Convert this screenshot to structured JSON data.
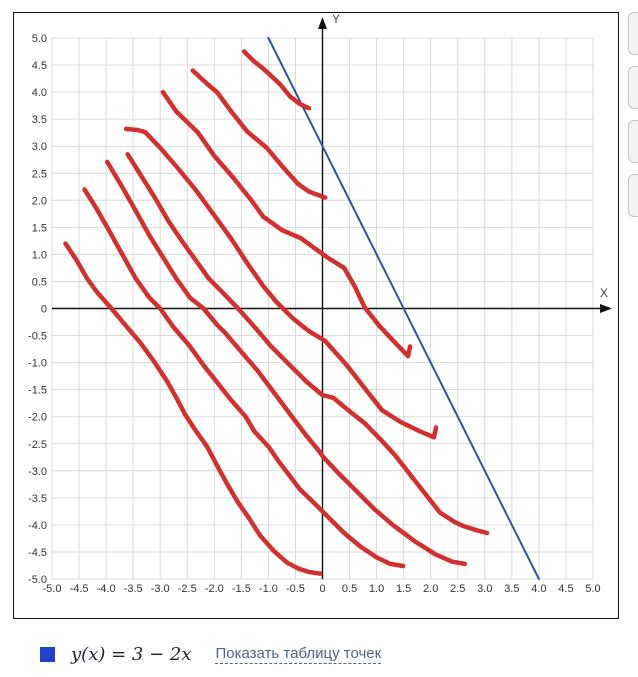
{
  "chart_data": {
    "type": "line",
    "title": "",
    "xlabel": "X",
    "ylabel": "Y",
    "xlim": [
      -5,
      5
    ],
    "ylim": [
      -5,
      5
    ],
    "grid": true,
    "grid_step": 0.5,
    "x_ticks": [
      "-5.0",
      "-4.5",
      "-4.0",
      "-3.5",
      "-3.0",
      "-2.5",
      "-2.0",
      "-1.5",
      "-1.0",
      "-0.5",
      "0",
      "0.5",
      "1.0",
      "1.5",
      "2.0",
      "2.5",
      "3.0",
      "3.5",
      "4.0",
      "4.5",
      "5.0"
    ],
    "y_ticks": [
      "5.0",
      "4.5",
      "4.0",
      "3.5",
      "3.0",
      "2.5",
      "2.0",
      "1.5",
      "1.0",
      "0.5",
      "0",
      "-0.5",
      "-1.0",
      "-1.5",
      "-2.0",
      "-2.5",
      "-3.0",
      "-3.5",
      "-4.0",
      "-4.5",
      "-5.0"
    ],
    "axis_color": "#111111",
    "grid_color": "#d9d9d9",
    "tick_color": "#333333",
    "series": [
      {
        "name": "y(x) = 3 − 2x",
        "role": "function-line",
        "color": "#33549C",
        "width": 2,
        "points": [
          [
            -1,
            5
          ],
          [
            4,
            -5
          ]
        ]
      },
      {
        "name": "freehand-stroke-1",
        "role": "freehand",
        "color": "#D22F2F",
        "width": 4.5,
        "points": [
          [
            -1.45,
            4.75
          ],
          [
            -1.28,
            4.58
          ],
          [
            -1.08,
            4.42
          ],
          [
            -0.95,
            4.3
          ],
          [
            -0.78,
            4.14
          ],
          [
            -0.6,
            3.92
          ],
          [
            -0.42,
            3.78
          ],
          [
            -0.25,
            3.7
          ]
        ]
      },
      {
        "name": "freehand-stroke-2",
        "role": "freehand",
        "color": "#D22F2F",
        "width": 4.5,
        "points": [
          [
            -2.4,
            4.4
          ],
          [
            -2.12,
            4.14
          ],
          [
            -1.95,
            4.0
          ],
          [
            -1.7,
            3.66
          ],
          [
            -1.4,
            3.28
          ],
          [
            -1.02,
            2.96
          ],
          [
            -0.72,
            2.6
          ],
          [
            -0.45,
            2.3
          ],
          [
            -0.25,
            2.16
          ],
          [
            0.05,
            2.05
          ]
        ]
      },
      {
        "name": "freehand-stroke-3",
        "role": "freehand",
        "color": "#D22F2F",
        "width": 4.5,
        "points": [
          [
            -2.95,
            4.0
          ],
          [
            -2.7,
            3.64
          ],
          [
            -2.3,
            3.25
          ],
          [
            -2.0,
            2.82
          ],
          [
            -1.65,
            2.42
          ],
          [
            -1.3,
            1.98
          ],
          [
            -1.1,
            1.7
          ],
          [
            -0.75,
            1.45
          ],
          [
            -0.4,
            1.3
          ],
          [
            0.08,
            0.95
          ],
          [
            0.4,
            0.75
          ],
          [
            0.6,
            0.4
          ],
          [
            0.78,
            0.02
          ],
          [
            1.05,
            -0.32
          ],
          [
            1.35,
            -0.64
          ],
          [
            1.58,
            -0.88
          ],
          [
            1.62,
            -0.7
          ]
        ]
      },
      {
        "name": "freehand-stroke-4",
        "role": "freehand",
        "color": "#D22F2F",
        "width": 4.5,
        "points": [
          [
            -3.63,
            3.32
          ],
          [
            -3.42,
            3.3
          ],
          [
            -3.28,
            3.26
          ],
          [
            -3.0,
            2.97
          ],
          [
            -2.68,
            2.6
          ],
          [
            -2.35,
            2.2
          ],
          [
            -2.0,
            1.72
          ],
          [
            -1.68,
            1.28
          ],
          [
            -1.4,
            0.85
          ],
          [
            -1.1,
            0.42
          ],
          [
            -0.85,
            0.12
          ],
          [
            -0.55,
            -0.18
          ],
          [
            -0.25,
            -0.42
          ],
          [
            0.05,
            -0.6
          ],
          [
            0.45,
            -1.05
          ],
          [
            0.8,
            -1.5
          ],
          [
            1.1,
            -1.88
          ],
          [
            1.45,
            -2.1
          ],
          [
            1.8,
            -2.27
          ],
          [
            2.06,
            -2.38
          ],
          [
            2.1,
            -2.2
          ]
        ]
      },
      {
        "name": "freehand-stroke-5",
        "role": "freehand",
        "color": "#D22F2F",
        "width": 4.5,
        "points": [
          [
            -3.6,
            2.85
          ],
          [
            -3.35,
            2.45
          ],
          [
            -3.1,
            2.05
          ],
          [
            -2.85,
            1.62
          ],
          [
            -2.6,
            1.25
          ],
          [
            -2.35,
            0.9
          ],
          [
            -2.1,
            0.55
          ],
          [
            -1.85,
            0.3
          ],
          [
            -1.56,
            0.0
          ],
          [
            -1.25,
            -0.35
          ],
          [
            -0.95,
            -0.7
          ],
          [
            -0.6,
            -1.05
          ],
          [
            -0.3,
            -1.35
          ],
          [
            0.0,
            -1.6
          ],
          [
            0.2,
            -1.65
          ],
          [
            0.5,
            -1.9
          ],
          [
            0.78,
            -2.12
          ],
          [
            1.1,
            -2.45
          ],
          [
            1.35,
            -2.72
          ],
          [
            1.76,
            -3.25
          ],
          [
            2.17,
            -3.77
          ],
          [
            2.45,
            -3.95
          ],
          [
            2.6,
            -4.02
          ],
          [
            2.85,
            -4.1
          ],
          [
            3.04,
            -4.15
          ]
        ]
      },
      {
        "name": "freehand-stroke-6",
        "role": "freehand",
        "color": "#D22F2F",
        "width": 4.5,
        "points": [
          [
            -3.98,
            2.71
          ],
          [
            -3.72,
            2.28
          ],
          [
            -3.45,
            1.8
          ],
          [
            -3.2,
            1.35
          ],
          [
            -2.95,
            0.95
          ],
          [
            -2.7,
            0.55
          ],
          [
            -2.45,
            0.2
          ],
          [
            -2.2,
            0.0
          ],
          [
            -1.95,
            -0.3
          ],
          [
            -1.8,
            -0.45
          ],
          [
            -1.5,
            -0.8
          ],
          [
            -1.2,
            -1.15
          ],
          [
            -0.9,
            -1.55
          ],
          [
            -0.6,
            -1.95
          ],
          [
            -0.3,
            -2.35
          ],
          [
            -0.05,
            -2.65
          ],
          [
            0.0,
            -2.73
          ],
          [
            0.3,
            -3.05
          ],
          [
            0.6,
            -3.35
          ],
          [
            0.95,
            -3.7
          ],
          [
            1.3,
            -4.0
          ],
          [
            1.7,
            -4.3
          ],
          [
            2.1,
            -4.55
          ],
          [
            2.4,
            -4.68
          ],
          [
            2.63,
            -4.72
          ]
        ]
      },
      {
        "name": "freehand-stroke-7",
        "role": "freehand",
        "color": "#D22F2F",
        "width": 4.5,
        "points": [
          [
            -4.4,
            2.2
          ],
          [
            -4.18,
            1.85
          ],
          [
            -3.95,
            1.45
          ],
          [
            -3.7,
            1.0
          ],
          [
            -3.45,
            0.55
          ],
          [
            -3.2,
            0.2
          ],
          [
            -3.0,
            0.0
          ],
          [
            -2.75,
            -0.35
          ],
          [
            -2.45,
            -0.7
          ],
          [
            -2.2,
            -1.05
          ],
          [
            -2.0,
            -1.3
          ],
          [
            -1.7,
            -1.68
          ],
          [
            -1.42,
            -2.0
          ],
          [
            -1.26,
            -2.27
          ],
          [
            -1.0,
            -2.55
          ],
          [
            -0.8,
            -2.84
          ],
          [
            -0.6,
            -3.1
          ],
          [
            -0.42,
            -3.34
          ],
          [
            -0.15,
            -3.6
          ],
          [
            0.1,
            -3.85
          ],
          [
            0.4,
            -4.15
          ],
          [
            0.7,
            -4.4
          ],
          [
            1.0,
            -4.6
          ],
          [
            1.25,
            -4.72
          ],
          [
            1.49,
            -4.76
          ]
        ]
      },
      {
        "name": "freehand-stroke-8",
        "role": "freehand",
        "color": "#D22F2F",
        "width": 4.5,
        "points": [
          [
            -4.75,
            1.2
          ],
          [
            -4.55,
            0.9
          ],
          [
            -4.35,
            0.55
          ],
          [
            -4.15,
            0.28
          ],
          [
            -3.9,
            0.0
          ],
          [
            -3.65,
            -0.3
          ],
          [
            -3.37,
            -0.63
          ],
          [
            -3.1,
            -1.0
          ],
          [
            -2.87,
            -1.35
          ],
          [
            -2.7,
            -1.65
          ],
          [
            -2.54,
            -1.96
          ],
          [
            -2.35,
            -2.25
          ],
          [
            -2.13,
            -2.56
          ],
          [
            -1.95,
            -2.9
          ],
          [
            -1.76,
            -3.25
          ],
          [
            -1.55,
            -3.6
          ],
          [
            -1.37,
            -3.86
          ],
          [
            -1.15,
            -4.2
          ],
          [
            -0.9,
            -4.48
          ],
          [
            -0.65,
            -4.7
          ],
          [
            -0.44,
            -4.81
          ],
          [
            -0.25,
            -4.87
          ],
          [
            -0.04,
            -4.9
          ]
        ]
      }
    ]
  },
  "legend": {
    "swatch_color": "#2341CC",
    "equation": "y(x) = 3 − 2x",
    "link_label": "Показать таблицу точек"
  },
  "side_panel": {
    "buttons": [
      "",
      "",
      "",
      ""
    ]
  }
}
